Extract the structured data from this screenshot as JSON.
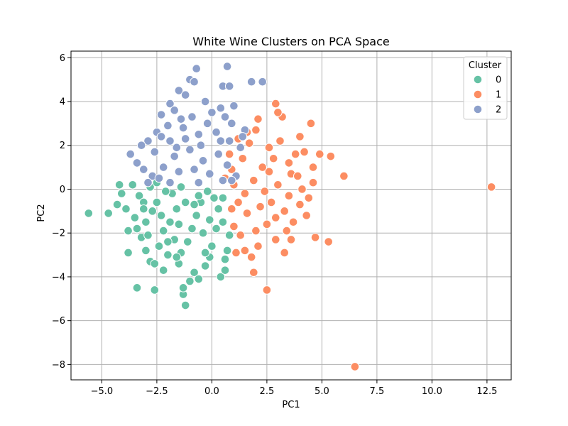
{
  "chart_data": {
    "type": "scatter",
    "title": "White Wine Clusters on PCA Space",
    "xlabel": "PC1",
    "ylabel": "PC2",
    "xlim": [
      -6.4,
      13.6
    ],
    "ylim": [
      -8.7,
      6.3
    ],
    "xticks": [
      -5.0,
      -2.5,
      0.0,
      2.5,
      5.0,
      7.5,
      10.0,
      12.5
    ],
    "xtick_labels": [
      "−5.0",
      "−2.5",
      "0.0",
      "2.5",
      "5.0",
      "7.5",
      "10.0",
      "12.5"
    ],
    "yticks": [
      -8,
      -6,
      -4,
      -2,
      0,
      2,
      4,
      6
    ],
    "ytick_labels": [
      "−8",
      "−6",
      "−4",
      "−2",
      "0",
      "2",
      "4",
      "6"
    ],
    "grid": true,
    "legend": {
      "title": "Cluster",
      "placement": "top-right"
    },
    "series": [
      {
        "name": "0",
        "color": "#66c2a5",
        "points": [
          [
            -5.6,
            -1.1
          ],
          [
            -4.7,
            -1.1
          ],
          [
            -4.2,
            0.2
          ],
          [
            -4.1,
            -0.2
          ],
          [
            -4.3,
            -0.7
          ],
          [
            -3.9,
            -0.9
          ],
          [
            -3.8,
            -1.9
          ],
          [
            -3.8,
            -2.9
          ],
          [
            -3.5,
            -1.3
          ],
          [
            -3.4,
            -4.5
          ],
          [
            -2.6,
            -4.6
          ],
          [
            -3.6,
            0.2
          ],
          [
            -3.3,
            -0.3
          ],
          [
            -3.1,
            -0.6
          ],
          [
            -3.0,
            -1.5
          ],
          [
            -3.2,
            -2.2
          ],
          [
            -3.0,
            -2.8
          ],
          [
            -2.8,
            -3.3
          ],
          [
            -2.6,
            -3.4
          ],
          [
            -2.8,
            0.1
          ],
          [
            -2.5,
            -0.6
          ],
          [
            -2.3,
            -1.2
          ],
          [
            -2.2,
            -1.9
          ],
          [
            -2.4,
            -2.6
          ],
          [
            -2.0,
            -3.0
          ],
          [
            -1.8,
            -0.2
          ],
          [
            -1.6,
            -0.9
          ],
          [
            -1.5,
            -1.6
          ],
          [
            -1.7,
            -2.3
          ],
          [
            -1.4,
            -2.9
          ],
          [
            -1.5,
            -3.4
          ],
          [
            -1.3,
            -4.8
          ],
          [
            -1.2,
            -5.3
          ],
          [
            -1.3,
            -4.5
          ],
          [
            -1.0,
            -4.2
          ],
          [
            -0.8,
            -3.8
          ],
          [
            -0.6,
            -4.1
          ],
          [
            -0.3,
            -3.5
          ],
          [
            -0.1,
            -3.1
          ],
          [
            0.4,
            -4.0
          ],
          [
            0.6,
            -3.7
          ],
          [
            0.7,
            -2.8
          ],
          [
            0.8,
            -2.1
          ],
          [
            0.5,
            -1.5
          ],
          [
            0.3,
            -0.9
          ],
          [
            0.1,
            -0.4
          ],
          [
            -0.2,
            -0.1
          ],
          [
            -0.5,
            -0.6
          ],
          [
            -0.7,
            -1.2
          ],
          [
            -0.9,
            -1.8
          ],
          [
            -1.1,
            -2.4
          ],
          [
            -0.4,
            -2.0
          ],
          [
            -0.1,
            -1.4
          ],
          [
            0.0,
            -2.6
          ],
          [
            -2.1,
            -0.1
          ],
          [
            -2.7,
            -1.0
          ],
          [
            -3.4,
            -1.8
          ],
          [
            -2.9,
            -2.1
          ],
          [
            -1.9,
            -1.5
          ],
          [
            -1.2,
            -0.6
          ],
          [
            -0.6,
            -0.3
          ],
          [
            0.2,
            -1.8
          ],
          [
            -0.3,
            -2.9
          ],
          [
            -1.6,
            -3.1
          ],
          [
            -2.2,
            -3.7
          ],
          [
            -3.1,
            -0.9
          ],
          [
            -2.5,
            0.3
          ],
          [
            -1.4,
            0.1
          ],
          [
            -0.8,
            -0.7
          ],
          [
            0.5,
            -0.4
          ],
          [
            0.6,
            -3.2
          ],
          [
            -2.0,
            -2.4
          ]
        ]
      },
      {
        "name": "1",
        "color": "#fc8d62",
        "points": [
          [
            12.7,
            0.1
          ],
          [
            6.5,
            -8.1
          ],
          [
            6.0,
            0.6
          ],
          [
            5.4,
            1.5
          ],
          [
            5.3,
            -2.4
          ],
          [
            4.9,
            1.6
          ],
          [
            4.6,
            1.0
          ],
          [
            4.5,
            3.0
          ],
          [
            4.6,
            0.3
          ],
          [
            4.4,
            -0.4
          ],
          [
            4.3,
            -1.2
          ],
          [
            4.7,
            -2.2
          ],
          [
            4.2,
            1.7
          ],
          [
            4.0,
            2.4
          ],
          [
            3.8,
            1.6
          ],
          [
            3.6,
            0.7
          ],
          [
            3.5,
            -0.3
          ],
          [
            3.3,
            -1.0
          ],
          [
            3.4,
            -1.9
          ],
          [
            3.3,
            -2.9
          ],
          [
            3.1,
            2.2
          ],
          [
            3.2,
            3.3
          ],
          [
            2.9,
            3.9
          ],
          [
            3.0,
            3.5
          ],
          [
            2.8,
            1.4
          ],
          [
            2.6,
            0.8
          ],
          [
            2.4,
            -0.1
          ],
          [
            2.2,
            -0.8
          ],
          [
            2.5,
            -1.6
          ],
          [
            2.1,
            -2.6
          ],
          [
            1.8,
            -3.1
          ],
          [
            2.5,
            -4.6
          ],
          [
            1.9,
            -3.8
          ],
          [
            1.5,
            -2.8
          ],
          [
            1.3,
            -2.1
          ],
          [
            1.6,
            -1.1
          ],
          [
            1.2,
            -0.6
          ],
          [
            1.0,
            0.2
          ],
          [
            0.9,
            0.9
          ],
          [
            1.4,
            1.4
          ],
          [
            1.7,
            2.1
          ],
          [
            2.0,
            2.7
          ],
          [
            2.1,
            3.2
          ],
          [
            1.6,
            2.6
          ],
          [
            1.2,
            2.3
          ],
          [
            0.8,
            1.6
          ],
          [
            0.6,
            0.5
          ],
          [
            1.0,
            -1.7
          ],
          [
            2.9,
            -2.3
          ],
          [
            3.7,
            -1.5
          ],
          [
            4.0,
            -0.7
          ],
          [
            3.0,
            0.2
          ],
          [
            2.7,
            -0.6
          ],
          [
            3.9,
            0.6
          ],
          [
            2.3,
            1.0
          ],
          [
            1.9,
            0.4
          ],
          [
            1.5,
            -0.2
          ],
          [
            2.6,
            1.9
          ],
          [
            3.5,
            1.2
          ],
          [
            4.1,
            0.0
          ],
          [
            0.9,
            -0.9
          ],
          [
            1.1,
            -2.9
          ],
          [
            2.0,
            -1.9
          ],
          [
            2.9,
            -1.3
          ],
          [
            3.6,
            -2.3
          ]
        ]
      },
      {
        "name": "2",
        "color": "#8da0cb",
        "points": [
          [
            -0.7,
            5.5
          ],
          [
            0.7,
            5.6
          ],
          [
            -1.0,
            5.0
          ],
          [
            -0.8,
            4.9
          ],
          [
            0.5,
            4.7
          ],
          [
            0.8,
            4.7
          ],
          [
            1.8,
            4.9
          ],
          [
            2.3,
            4.9
          ],
          [
            -1.5,
            4.5
          ],
          [
            -1.2,
            4.3
          ],
          [
            -0.3,
            4.0
          ],
          [
            0.4,
            3.7
          ],
          [
            1.0,
            3.8
          ],
          [
            -1.9,
            3.9
          ],
          [
            -2.3,
            3.4
          ],
          [
            -1.7,
            3.6
          ],
          [
            -0.9,
            3.3
          ],
          [
            0.0,
            3.5
          ],
          [
            0.9,
            3.0
          ],
          [
            1.5,
            2.7
          ],
          [
            -2.9,
            2.2
          ],
          [
            -2.5,
            2.6
          ],
          [
            -2.0,
            2.9
          ],
          [
            -1.3,
            2.8
          ],
          [
            -0.6,
            2.5
          ],
          [
            0.2,
            2.6
          ],
          [
            0.8,
            2.2
          ],
          [
            1.3,
            1.9
          ],
          [
            -3.7,
            1.6
          ],
          [
            -3.4,
            1.2
          ],
          [
            -3.1,
            0.9
          ],
          [
            -2.7,
            0.6
          ],
          [
            -2.2,
            1.0
          ],
          [
            -1.7,
            1.5
          ],
          [
            -1.0,
            1.8
          ],
          [
            -0.4,
            1.3
          ],
          [
            0.3,
            1.6
          ],
          [
            0.7,
            1.1
          ],
          [
            1.1,
            0.6
          ],
          [
            -3.2,
            2.0
          ],
          [
            -2.6,
            1.7
          ],
          [
            -1.9,
            2.2
          ],
          [
            -1.2,
            2.3
          ],
          [
            -0.5,
            2.0
          ],
          [
            0.4,
            2.2
          ],
          [
            -2.4,
            0.5
          ],
          [
            -1.5,
            0.8
          ],
          [
            -0.8,
            0.9
          ],
          [
            -0.1,
            0.7
          ],
          [
            0.5,
            0.4
          ],
          [
            -2.9,
            0.3
          ],
          [
            -1.9,
            0.3
          ],
          [
            -0.6,
            0.3
          ],
          [
            0.9,
            0.4
          ],
          [
            1.4,
            2.4
          ],
          [
            -1.4,
            3.2
          ],
          [
            -0.2,
            3.0
          ],
          [
            0.6,
            3.3
          ],
          [
            -2.3,
            2.4
          ],
          [
            -1.6,
            1.9
          ]
        ]
      }
    ]
  }
}
